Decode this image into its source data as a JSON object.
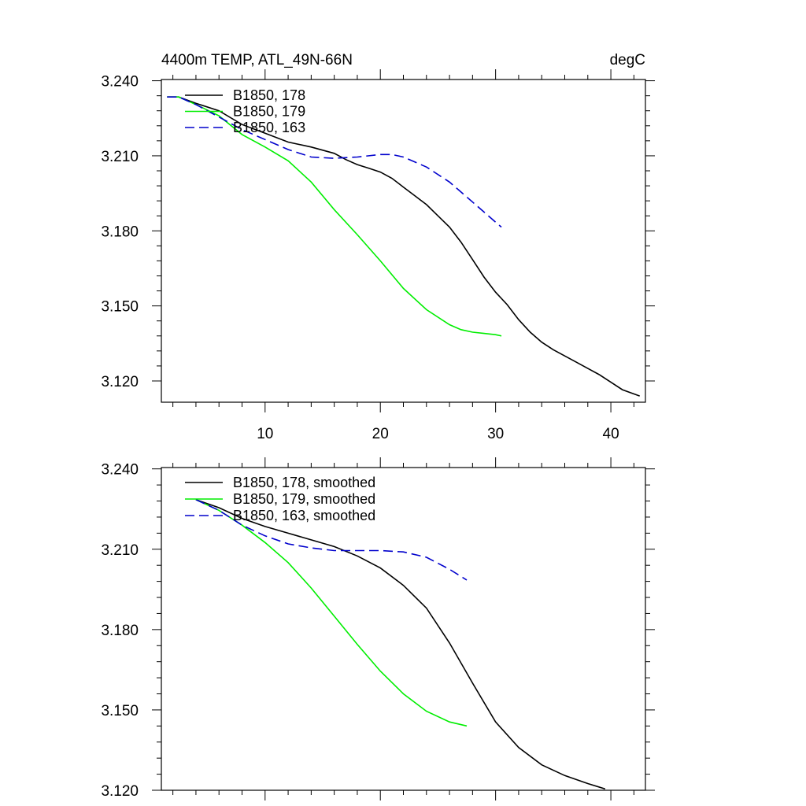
{
  "chart_data": [
    {
      "type": "line",
      "title": "4400m TEMP, ATL_49N-66N",
      "units": "degC",
      "xlim": [
        1,
        43
      ],
      "ylim": [
        3.1115,
        3.2405
      ],
      "x_ticks": [
        10,
        20,
        30,
        40
      ],
      "x_tick_labels": [
        "10",
        "20",
        "30",
        "40"
      ],
      "y_ticks": [
        3.24,
        3.21,
        3.18,
        3.15,
        3.12
      ],
      "y_tick_labels": [
        "3.240",
        "3.210",
        "3.180",
        "3.150",
        "3.120"
      ],
      "grid": false,
      "legend_position": "top-left",
      "series": [
        {
          "name": "B1850, 178",
          "color": "#000000",
          "dash": "solid",
          "x": [
            1.5,
            2.5,
            4,
            6,
            8,
            10,
            12,
            14,
            16,
            17,
            18,
            19,
            20,
            21,
            22,
            23,
            24,
            25,
            26,
            27,
            28,
            29,
            30,
            31,
            32,
            33,
            34,
            35,
            36,
            37,
            38,
            39,
            40,
            41,
            42.5
          ],
          "y": [
            3.2335,
            3.2335,
            3.231,
            3.228,
            3.2225,
            3.219,
            3.2155,
            3.2135,
            3.211,
            3.2085,
            3.2065,
            3.205,
            3.2035,
            3.201,
            3.1975,
            3.194,
            3.1905,
            3.186,
            3.1815,
            3.1755,
            3.1685,
            3.1615,
            3.1555,
            3.1505,
            3.1445,
            3.1395,
            3.1355,
            3.1325,
            3.13,
            3.1275,
            3.125,
            3.1225,
            3.1195,
            3.1165,
            3.114
          ]
        },
        {
          "name": "B1850, 179",
          "color": "#00ee00",
          "dash": "solid",
          "x": [
            1.5,
            2.5,
            4,
            6,
            8,
            10,
            12,
            14,
            16,
            18,
            20,
            22,
            24,
            26,
            27,
            28,
            29,
            30,
            30.5
          ],
          "y": [
            3.2335,
            3.2335,
            3.2305,
            3.226,
            3.2185,
            3.2135,
            3.208,
            3.1995,
            3.1885,
            3.1785,
            3.168,
            3.157,
            3.1485,
            3.1425,
            3.1405,
            3.1395,
            3.139,
            3.1385,
            3.138
          ]
        },
        {
          "name": "B1850, 163",
          "color": "#0000cc",
          "dash": "dashed",
          "x": [
            1.5,
            2.5,
            4,
            6,
            8,
            10,
            12,
            14,
            16,
            18,
            20,
            21,
            22,
            24,
            26,
            28,
            30,
            30.5
          ],
          "y": [
            3.2335,
            3.2335,
            3.2305,
            3.2255,
            3.2205,
            3.2165,
            3.2125,
            3.2095,
            3.209,
            3.2095,
            3.2105,
            3.2105,
            3.2095,
            3.2055,
            3.1995,
            3.1915,
            3.1835,
            3.1815
          ]
        }
      ]
    },
    {
      "type": "line",
      "title": "",
      "xlim": [
        1,
        43
      ],
      "ylim": [
        3.12,
        3.2405
      ],
      "x_ticks": [
        10,
        20,
        30,
        40
      ],
      "x_tick_labels": [],
      "y_ticks": [
        3.24,
        3.21,
        3.18,
        3.15,
        3.12
      ],
      "y_tick_labels": [
        "3.240",
        "3.210",
        "3.180",
        "3.150",
        "3.120"
      ],
      "grid": false,
      "legend_position": "top-left",
      "series": [
        {
          "name": "B1850, 178, smoothed",
          "color": "#000000",
          "dash": "solid",
          "x": [
            4,
            6,
            8,
            10,
            12,
            14,
            16,
            18,
            20,
            22,
            24,
            26,
            28,
            30,
            32,
            34,
            36,
            38,
            39.5
          ],
          "y": [
            3.2285,
            3.2255,
            3.2215,
            3.2185,
            3.216,
            3.2135,
            3.211,
            3.2075,
            3.203,
            3.1965,
            3.188,
            3.175,
            3.16,
            3.1455,
            3.136,
            3.1295,
            3.1255,
            3.1225,
            3.1205
          ]
        },
        {
          "name": "B1850, 179, smoothed",
          "color": "#00ee00",
          "dash": "solid",
          "x": [
            4,
            6,
            8,
            10,
            12,
            14,
            16,
            18,
            20,
            22,
            24,
            26,
            27.5
          ],
          "y": [
            3.2285,
            3.2245,
            3.219,
            3.2125,
            3.205,
            3.1955,
            3.185,
            3.1745,
            3.1645,
            3.156,
            3.1495,
            3.1455,
            3.144
          ]
        },
        {
          "name": "B1850, 163, smoothed",
          "color": "#0000cc",
          "dash": "dashed",
          "x": [
            4,
            6,
            8,
            10,
            12,
            14,
            16,
            18,
            20,
            22,
            24,
            26,
            27.5
          ],
          "y": [
            3.2285,
            3.2245,
            3.219,
            3.215,
            3.212,
            3.2105,
            3.2095,
            3.2095,
            3.2095,
            3.209,
            3.207,
            3.2025,
            3.1985
          ]
        }
      ]
    }
  ]
}
